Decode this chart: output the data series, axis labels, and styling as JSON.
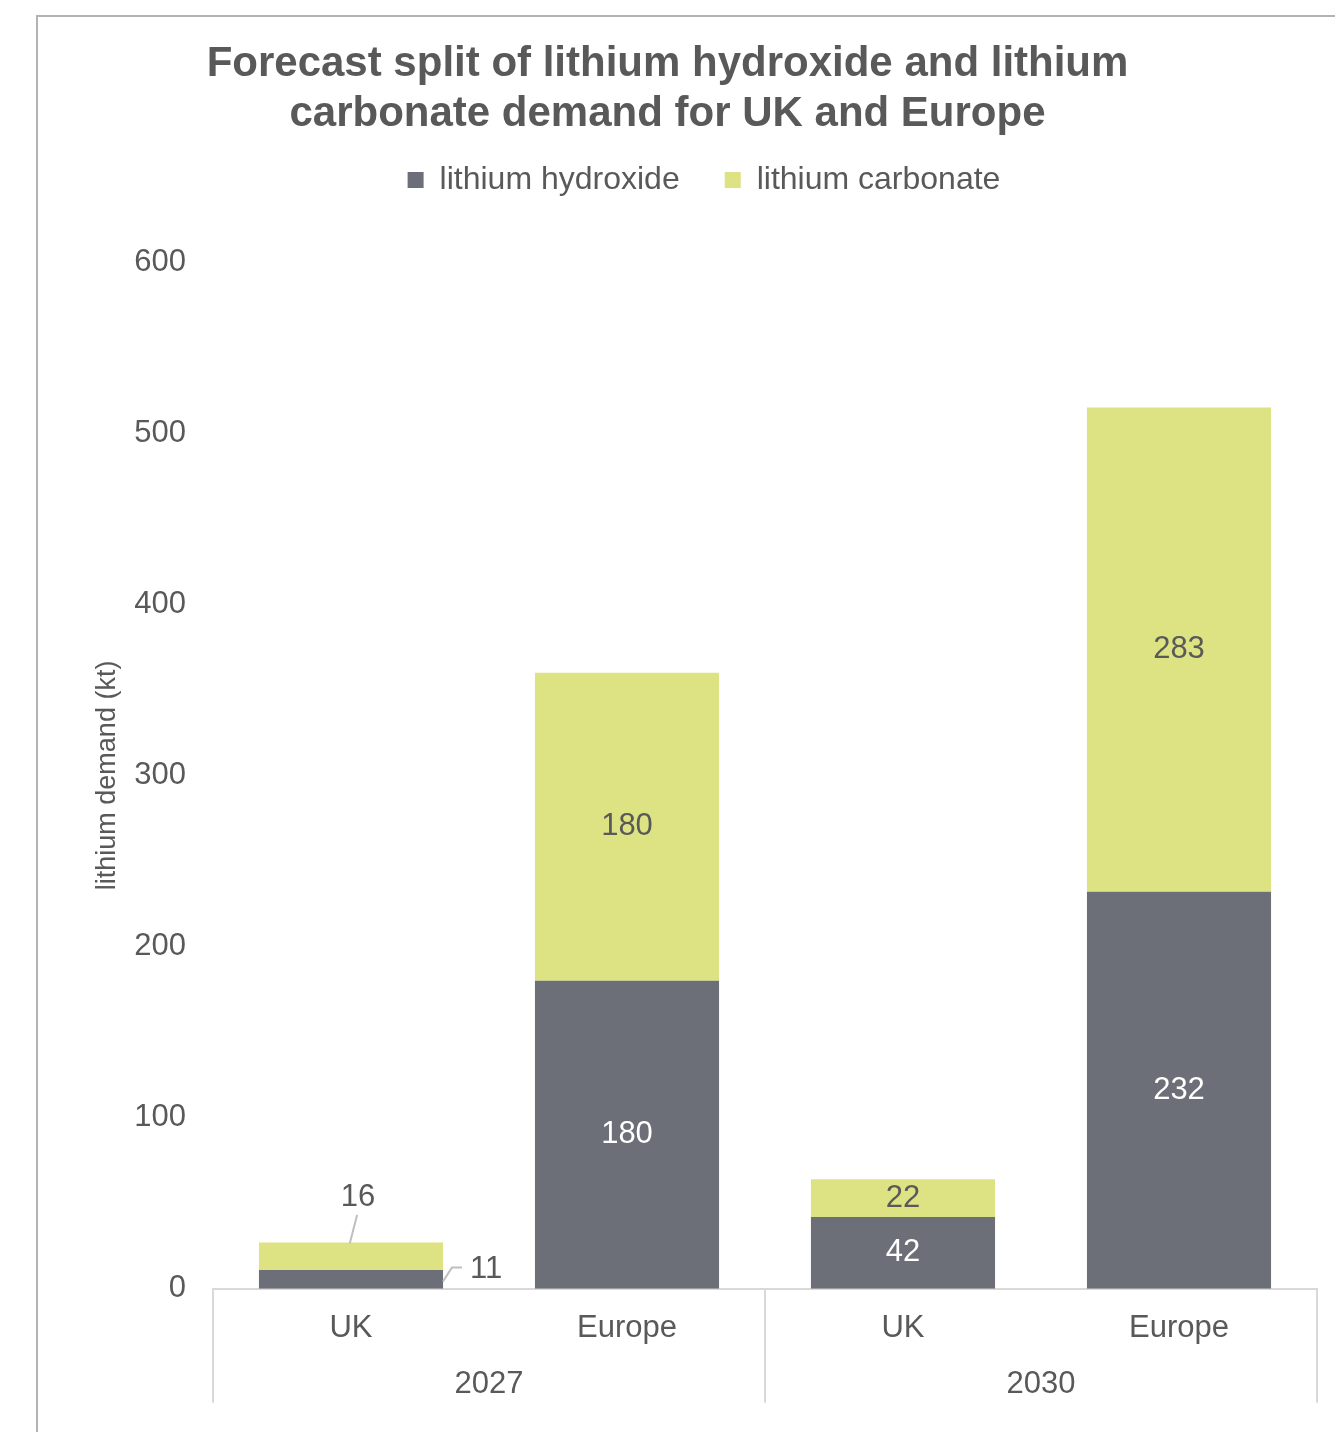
{
  "chart_data": {
    "type": "bar",
    "title": "Forecast split of lithium hydroxide and lithium carbonate demand for UK and Europe",
    "ylabel": "lithium demand (kt)",
    "categories": [
      "UK",
      "Europe",
      "UK",
      "Europe"
    ],
    "series": [
      {
        "name": "lithium hydroxide",
        "color": "#6d6f78",
        "values": [
          11,
          180,
          42,
          232
        ]
      },
      {
        "name": "lithium carbonate",
        "color": "#dde283",
        "values": [
          16,
          180,
          22,
          283
        ]
      }
    ],
    "stacked": true,
    "ylim": [
      0,
      600
    ],
    "yticks": [
      0,
      100,
      200,
      300,
      400,
      500,
      600
    ],
    "grid": false,
    "legend": "top",
    "data_labels": true,
    "annotations": [
      "2027",
      "2030"
    ]
  }
}
